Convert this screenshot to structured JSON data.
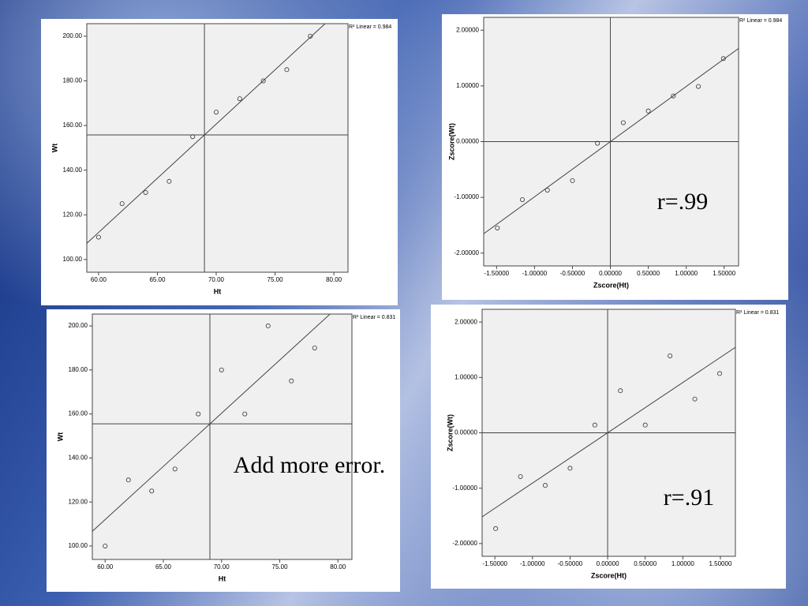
{
  "chart_data": [
    {
      "type": "scatter",
      "xlabel": "Ht",
      "ylabel": "Wt",
      "r2_label": "R² Linear = 0.984",
      "x": [
        60,
        62,
        64,
        66,
        68,
        70,
        72,
        74,
        76,
        78
      ],
      "values": [
        110,
        125,
        130,
        135,
        155,
        166,
        172,
        180,
        185,
        200
      ],
      "xlim": [
        59,
        81.2
      ],
      "ylim": [
        94.3,
        205.6
      ],
      "xticks": [
        {
          "value": 60,
          "label": "60.00"
        },
        {
          "value": 65,
          "label": "65.00"
        },
        {
          "value": 70,
          "label": "70.00"
        },
        {
          "value": 75,
          "label": "75.00"
        },
        {
          "value": 80,
          "label": "80.00"
        }
      ],
      "yticks": [
        {
          "value": 100,
          "label": "100.00"
        },
        {
          "value": 120,
          "label": "120.00"
        },
        {
          "value": 140,
          "label": "140.00"
        },
        {
          "value": 160,
          "label": "160.00"
        },
        {
          "value": 180,
          "label": "180.00"
        },
        {
          "value": 200,
          "label": "200.00"
        }
      ]
    },
    {
      "type": "scatter",
      "xlabel": "Zscore(Ht)",
      "ylabel": "Zscore(Wt)",
      "r2_label": "R² Linear = 0.984",
      "annotation": "r=.99",
      "x": [
        -1.49,
        -1.16,
        -0.83,
        -0.5,
        -0.17,
        0.17,
        0.5,
        0.83,
        1.16,
        1.49
      ],
      "values": [
        -1.55,
        -1.04,
        -0.87,
        -0.7,
        -0.03,
        0.34,
        0.55,
        0.82,
        0.99,
        1.49
      ],
      "xlim": [
        -1.67,
        1.69
      ],
      "ylim": [
        -2.23,
        2.23
      ],
      "xticks": [
        {
          "value": -1.5,
          "label": "-1.50000"
        },
        {
          "value": -1,
          "label": "-1.00000"
        },
        {
          "value": -0.5,
          "label": "-0.50000"
        },
        {
          "value": 0,
          "label": "0.00000"
        },
        {
          "value": 0.5,
          "label": "0.50000"
        },
        {
          "value": 1,
          "label": "1.00000"
        },
        {
          "value": 1.5,
          "label": "1.50000"
        }
      ],
      "yticks": [
        {
          "value": -2,
          "label": "-2.00000"
        },
        {
          "value": -1,
          "label": "-1.00000"
        },
        {
          "value": 0,
          "label": "0.00000"
        },
        {
          "value": 1,
          "label": "1.00000"
        },
        {
          "value": 2,
          "label": "2.00000"
        }
      ]
    },
    {
      "type": "scatter",
      "xlabel": "Ht",
      "ylabel": "Wt",
      "r2_label": "R² Linear = 0.831",
      "annotation": "Add more error.",
      "x": [
        60,
        62,
        64,
        66,
        68,
        70,
        72,
        74,
        76,
        78
      ],
      "values": [
        100,
        130,
        125,
        135,
        160,
        180,
        160,
        200,
        175,
        190
      ],
      "xlim": [
        58.9,
        81.2
      ],
      "ylim": [
        93.9,
        205.4
      ],
      "xticks": [
        {
          "value": 60,
          "label": "60.00"
        },
        {
          "value": 65,
          "label": "65.00"
        },
        {
          "value": 70,
          "label": "70.00"
        },
        {
          "value": 75,
          "label": "75.00"
        },
        {
          "value": 80,
          "label": "80.00"
        }
      ],
      "yticks": [
        {
          "value": 100,
          "label": "100.00"
        },
        {
          "value": 120,
          "label": "120.00"
        },
        {
          "value": 140,
          "label": "140.00"
        },
        {
          "value": 160,
          "label": "160.00"
        },
        {
          "value": 180,
          "label": "180.00"
        },
        {
          "value": 200,
          "label": "200.00"
        }
      ]
    },
    {
      "type": "scatter",
      "xlabel": "Zscore(Ht)",
      "ylabel": "Zscore(Wt)",
      "r2_label": "R² Linear = 0.831",
      "annotation": "r=.91",
      "x": [
        -1.49,
        -1.16,
        -0.83,
        -0.5,
        -0.17,
        0.17,
        0.5,
        0.83,
        1.16,
        1.49
      ],
      "values": [
        -1.73,
        -0.79,
        -0.95,
        -0.64,
        0.14,
        0.76,
        0.14,
        1.39,
        0.61,
        1.07
      ],
      "xlim": [
        -1.67,
        1.7
      ],
      "ylim": [
        -2.23,
        2.23
      ],
      "xticks": [
        {
          "value": -1.5,
          "label": "-1.50000"
        },
        {
          "value": -1,
          "label": "-1.00000"
        },
        {
          "value": -0.5,
          "label": "-0.50000"
        },
        {
          "value": 0,
          "label": "0.00000"
        },
        {
          "value": 0.5,
          "label": "0.50000"
        },
        {
          "value": 1,
          "label": "1.00000"
        },
        {
          "value": 1.5,
          "label": "1.50000"
        }
      ],
      "yticks": [
        {
          "value": -2,
          "label": "-2.00000"
        },
        {
          "value": -1,
          "label": "-1.00000"
        },
        {
          "value": 0,
          "label": "0.00000"
        },
        {
          "value": 1,
          "label": "1.00000"
        },
        {
          "value": 2,
          "label": "2.00000"
        }
      ]
    }
  ]
}
